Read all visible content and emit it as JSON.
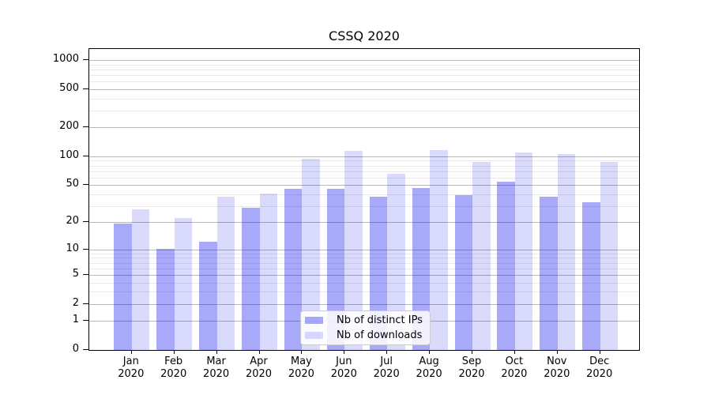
{
  "title": "CSSQ 2020",
  "colors": {
    "ips_bar": "rgba(10,10,240,0.35)",
    "downloads_bar": "rgba(10,10,240,0.15)",
    "major_grid": "#b8b8b8",
    "minor_grid": "#e9e9e9",
    "axis": "#000000"
  },
  "legend": {
    "items": [
      {
        "label": "Nb of distinct IPs",
        "color_key": "ips_bar"
      },
      {
        "label": "Nb of downloads",
        "color_key": "downloads_bar"
      }
    ]
  },
  "chart_data": {
    "type": "bar",
    "title": "CSSQ 2020",
    "categories": [
      "Jan 2020",
      "Feb 2020",
      "Mar 2020",
      "Apr 2020",
      "May 2020",
      "Jun 2020",
      "Jul 2020",
      "Aug 2020",
      "Sep 2020",
      "Oct 2020",
      "Nov 2020",
      "Dec 2020"
    ],
    "series": [
      {
        "name": "Nb of distinct IPs",
        "values": [
          19,
          10,
          12,
          28,
          45,
          45,
          37,
          46,
          38,
          53,
          37,
          32
        ]
      },
      {
        "name": "Nb of downloads",
        "values": [
          27,
          22,
          37,
          40,
          93,
          112,
          64,
          114,
          85,
          107,
          103,
          85
        ]
      }
    ],
    "y_scale": "log1p",
    "y_major_ticks": [
      0,
      1,
      2,
      5,
      10,
      20,
      50,
      100,
      200,
      500,
      1000
    ],
    "y_minor_ticks": [
      3,
      4,
      6,
      7,
      8,
      9,
      30,
      40,
      60,
      70,
      80,
      90,
      300,
      400,
      600,
      700,
      800,
      900
    ],
    "ylim": [
      0,
      1300
    ],
    "grid": true,
    "legend_position": "lower center"
  }
}
